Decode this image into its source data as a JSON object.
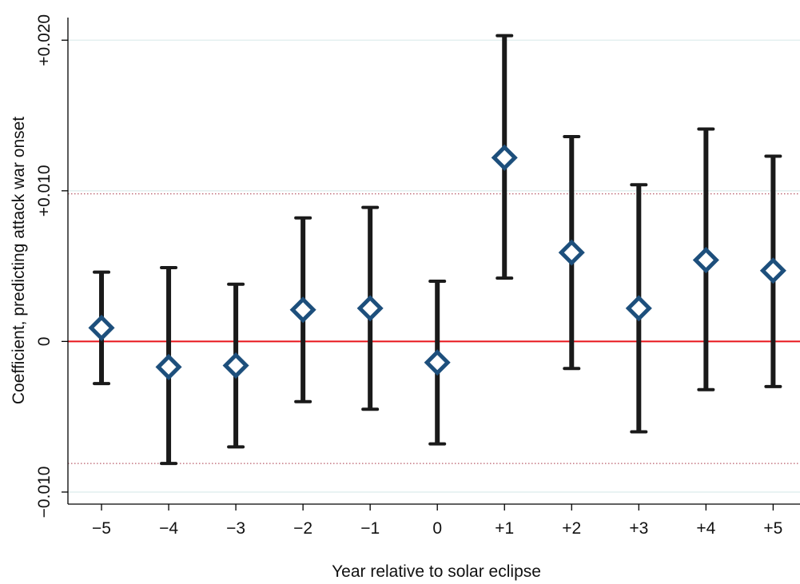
{
  "chart_data": {
    "type": "scatter",
    "subtype": "coefficient plot with confidence intervals",
    "xlabel": "Year relative to solar eclipse",
    "ylabel": "Coefficient, predicting attack war onset",
    "categories": [
      "−5",
      "−4",
      "−3",
      "−2",
      "−1",
      "0",
      "+1",
      "+2",
      "+3",
      "+4",
      "+5"
    ],
    "x": [
      -5,
      -4,
      -3,
      -2,
      -1,
      0,
      1,
      2,
      3,
      4,
      5
    ],
    "estimate": [
      0.0009,
      -0.0017,
      -0.0016,
      0.0021,
      0.0022,
      -0.0014,
      0.0122,
      0.0059,
      0.0022,
      0.0054,
      0.0047
    ],
    "ci_lower": [
      -0.0028,
      -0.0081,
      -0.007,
      -0.004,
      -0.0045,
      -0.0068,
      0.0042,
      -0.0018,
      -0.006,
      -0.0032,
      -0.003
    ],
    "ci_upper": [
      0.0046,
      0.0049,
      0.0038,
      0.0082,
      0.0089,
      0.004,
      0.0203,
      0.0136,
      0.0104,
      0.0141,
      0.0123
    ],
    "yticks": [
      {
        "value": -0.01,
        "label": "−0.010"
      },
      {
        "value": 0,
        "label": "0"
      },
      {
        "value": 0.01,
        "label": "+0.010"
      },
      {
        "value": 0.02,
        "label": "+0.020"
      }
    ],
    "ylim": [
      -0.0108,
      0.0215
    ],
    "xlim": [
      -5.5,
      5.4
    ],
    "reference_lines": [
      {
        "value": 0,
        "style": "solid",
        "color": "#e8141a"
      },
      {
        "value": 0.0098,
        "style": "dotted",
        "color": "#b85c6a"
      },
      {
        "value": -0.0081,
        "style": "dotted",
        "color": "#b85c6a"
      }
    ],
    "grid": "horizontal major",
    "colors": {
      "marker": "#1d4f7c",
      "ci_bar": "#1a1a1a",
      "grid": "#dfeeee",
      "axis": "#000000"
    }
  }
}
